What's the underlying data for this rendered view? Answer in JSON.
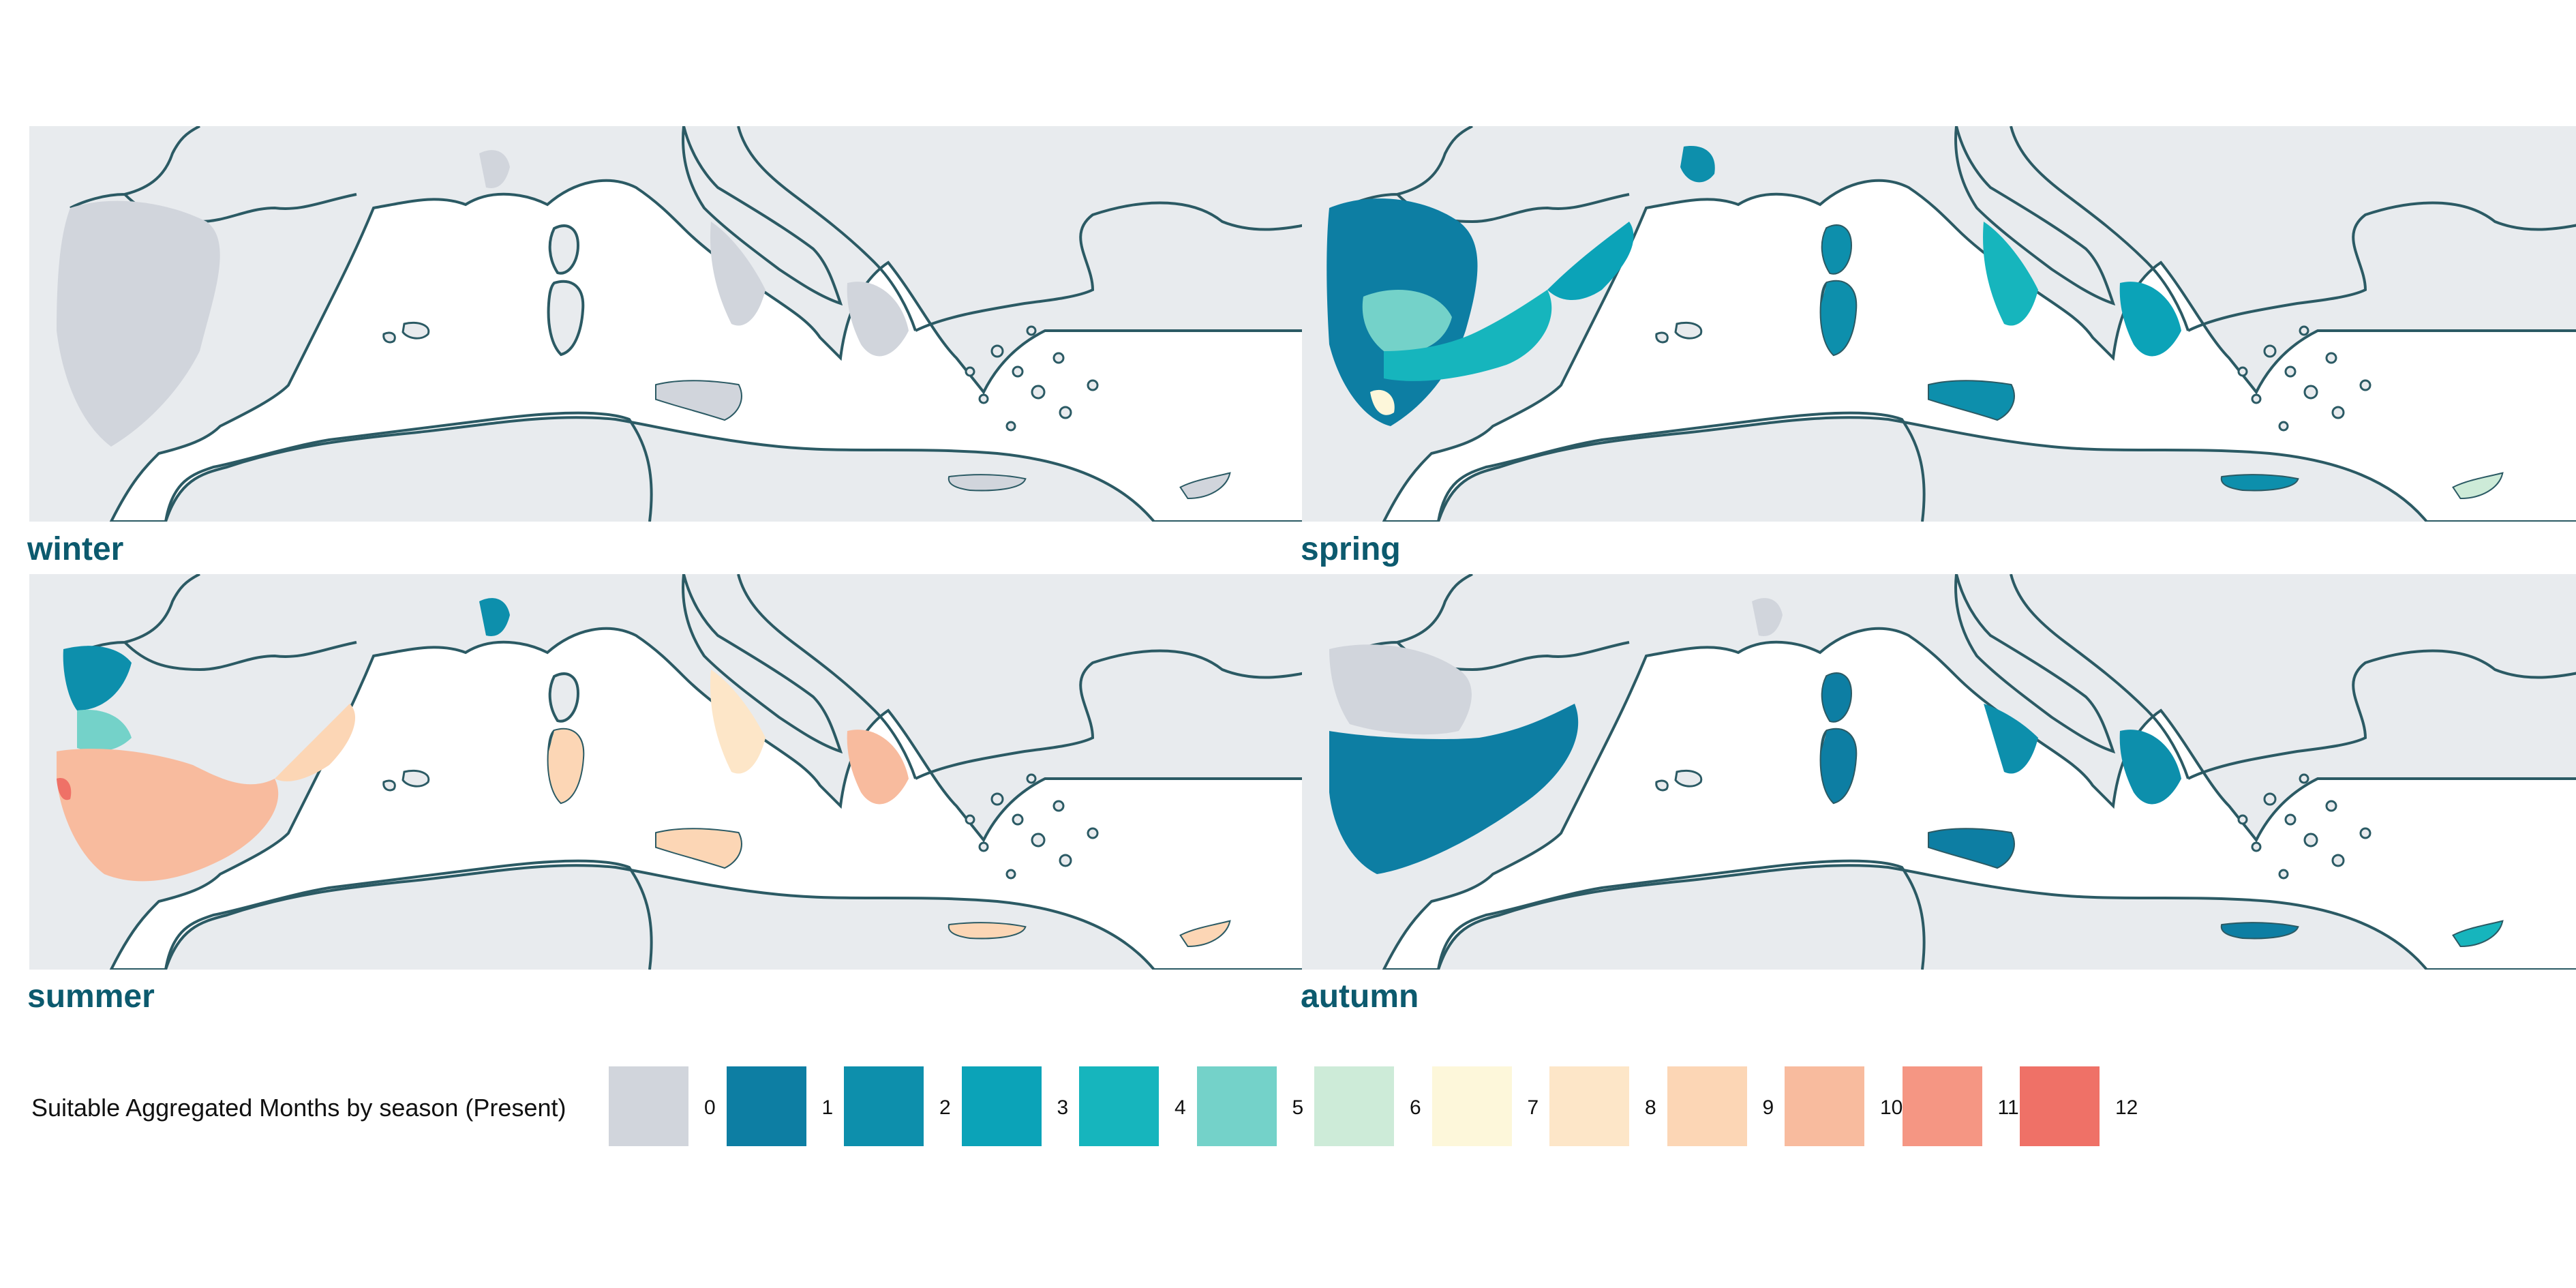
{
  "panels": [
    {
      "id": "winter",
      "label": "winter"
    },
    {
      "id": "spring",
      "label": "spring"
    },
    {
      "id": "summer",
      "label": "summer"
    },
    {
      "id": "autumn",
      "label": "autumn"
    }
  ],
  "legend": {
    "title": "Suitable Aggregated Months by season (Present)",
    "items": [
      {
        "value": "0",
        "color": "#d1d5dc"
      },
      {
        "value": "1",
        "color": "#0d7ea3"
      },
      {
        "value": "2",
        "color": "#0d8fac"
      },
      {
        "value": "3",
        "color": "#0ba3b8"
      },
      {
        "value": "4",
        "color": "#16b5bd"
      },
      {
        "value": "5",
        "color": "#74d2c9"
      },
      {
        "value": "6",
        "color": "#cdebd8"
      },
      {
        "value": "7",
        "color": "#fdf7da"
      },
      {
        "value": "8",
        "color": "#fde6c8"
      },
      {
        "value": "9",
        "color": "#fcd6b5"
      },
      {
        "value": "10",
        "color": "#f8bb9e"
      },
      {
        "value": "11",
        "color": "#f59683"
      },
      {
        "value": "12",
        "color": "#ef7167"
      }
    ]
  },
  "colors": {
    "land_background": "#e8ebee",
    "coastline": "#2b5a64",
    "sea": "#ffffff"
  }
}
